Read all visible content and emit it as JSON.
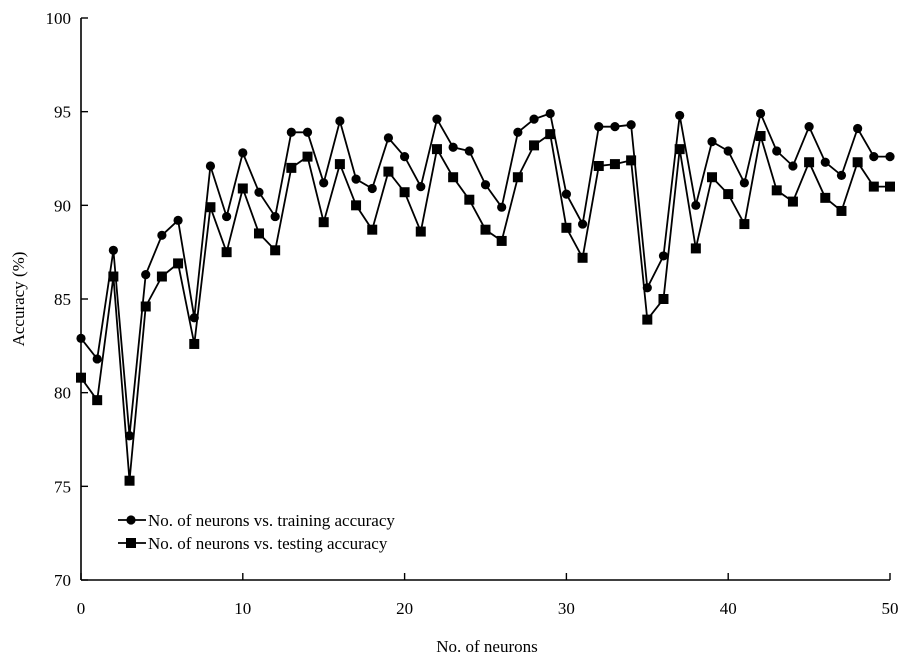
{
  "chart_data": {
    "type": "line",
    "xlabel": "No. of neurons",
    "ylabel": "Accuracy  (%)",
    "xlim": [
      0,
      50
    ],
    "ylim": [
      70,
      100
    ],
    "xticks": [
      0,
      10,
      20,
      30,
      40,
      50
    ],
    "yticks": [
      70,
      75,
      80,
      85,
      90,
      95,
      100
    ],
    "grid": false,
    "legend_position": "bottom-left",
    "x": [
      0,
      1,
      2,
      3,
      4,
      5,
      6,
      7,
      8,
      9,
      10,
      11,
      12,
      13,
      14,
      15,
      16,
      17,
      18,
      19,
      20,
      21,
      22,
      23,
      24,
      25,
      26,
      27,
      28,
      29,
      30,
      31,
      32,
      33,
      34,
      35,
      36,
      37,
      38,
      39,
      40,
      41,
      42,
      43,
      44,
      45,
      46,
      47,
      48,
      49,
      50
    ],
    "series": [
      {
        "name": "No. of neurons vs. training accuracy",
        "marker": "circle",
        "values": [
          82.9,
          81.8,
          87.6,
          77.7,
          86.3,
          88.4,
          89.2,
          84.0,
          92.1,
          89.4,
          92.8,
          90.7,
          89.4,
          93.9,
          93.9,
          91.2,
          94.5,
          91.4,
          90.9,
          93.6,
          92.6,
          91.0,
          94.6,
          93.1,
          92.9,
          91.1,
          89.9,
          93.9,
          94.6,
          94.9,
          90.6,
          89.0,
          94.2,
          94.2,
          94.3,
          85.6,
          87.3,
          94.8,
          90.0,
          93.4,
          92.9,
          91.2,
          94.9,
          92.9,
          92.1,
          94.2,
          92.3,
          91.6,
          94.1,
          92.6,
          92.6
        ]
      },
      {
        "name": "No. of neurons vs. testing accuracy",
        "marker": "square",
        "values": [
          80.8,
          79.6,
          86.2,
          75.3,
          84.6,
          86.2,
          86.9,
          82.6,
          89.9,
          87.5,
          90.9,
          88.5,
          87.6,
          92.0,
          92.6,
          89.1,
          92.2,
          90.0,
          88.7,
          91.8,
          90.7,
          88.6,
          93.0,
          91.5,
          90.3,
          88.7,
          88.1,
          91.5,
          93.2,
          93.8,
          88.8,
          87.2,
          92.1,
          92.2,
          92.4,
          83.9,
          85.0,
          93.0,
          87.7,
          91.5,
          90.6,
          89.0,
          93.7,
          90.8,
          90.2,
          92.3,
          90.4,
          89.7,
          92.3,
          91.0,
          91.0
        ]
      }
    ]
  },
  "colors": {
    "line": "#000000",
    "background": "#ffffff"
  }
}
